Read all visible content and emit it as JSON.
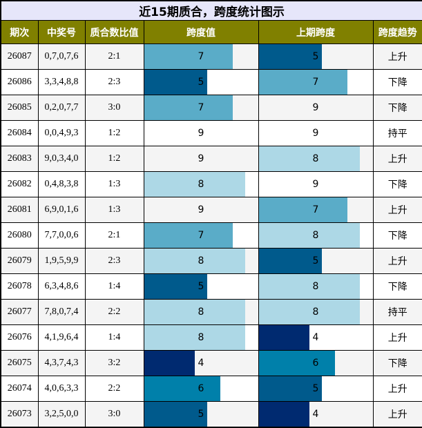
{
  "title": "近15期质合，跨度统计图示",
  "headers": [
    "期次",
    "中奖号",
    "质合数比值",
    "跨度值",
    "上期跨度",
    "跨度趋势"
  ],
  "span_max": 9,
  "span_colors": {
    "4": "#002a70",
    "5": "#005a8c",
    "6": "#0080aa",
    "7": "#5aacc8",
    "8": "#add8e6",
    "9": "transparent"
  },
  "header_color": "#808000",
  "title_bg": "#e6e6fa",
  "rows": [
    {
      "issue": "26087",
      "numbers": "0,7,0,7,6",
      "ratio": "2:1",
      "span": 7,
      "prev_span": 5,
      "trend": "上升"
    },
    {
      "issue": "26086",
      "numbers": "3,3,4,8,8",
      "ratio": "2:3",
      "span": 5,
      "prev_span": 7,
      "trend": "下降"
    },
    {
      "issue": "26085",
      "numbers": "0,2,0,7,7",
      "ratio": "3:0",
      "span": 7,
      "prev_span": 9,
      "trend": "下降"
    },
    {
      "issue": "26084",
      "numbers": "0,0,4,9,3",
      "ratio": "1:2",
      "span": 9,
      "prev_span": 9,
      "trend": "持平"
    },
    {
      "issue": "26083",
      "numbers": "9,0,3,4,0",
      "ratio": "1:2",
      "span": 9,
      "prev_span": 8,
      "trend": "上升"
    },
    {
      "issue": "26082",
      "numbers": "0,4,8,3,8",
      "ratio": "1:3",
      "span": 8,
      "prev_span": 9,
      "trend": "下降"
    },
    {
      "issue": "26081",
      "numbers": "6,9,0,1,6",
      "ratio": "1:3",
      "span": 9,
      "prev_span": 7,
      "trend": "上升"
    },
    {
      "issue": "26080",
      "numbers": "7,7,0,0,6",
      "ratio": "2:1",
      "span": 7,
      "prev_span": 8,
      "trend": "下降"
    },
    {
      "issue": "26079",
      "numbers": "1,9,5,9,9",
      "ratio": "2:3",
      "span": 8,
      "prev_span": 5,
      "trend": "上升"
    },
    {
      "issue": "26078",
      "numbers": "6,3,4,8,6",
      "ratio": "1:4",
      "span": 5,
      "prev_span": 8,
      "trend": "下降"
    },
    {
      "issue": "26077",
      "numbers": "7,8,0,7,4",
      "ratio": "2:2",
      "span": 8,
      "prev_span": 8,
      "trend": "持平"
    },
    {
      "issue": "26076",
      "numbers": "4,1,9,6,4",
      "ratio": "1:4",
      "span": 8,
      "prev_span": 4,
      "trend": "上升"
    },
    {
      "issue": "26075",
      "numbers": "4,3,7,4,3",
      "ratio": "3:2",
      "span": 4,
      "prev_span": 6,
      "trend": "下降"
    },
    {
      "issue": "26074",
      "numbers": "4,0,6,3,3",
      "ratio": "2:2",
      "span": 6,
      "prev_span": 5,
      "trend": "上升"
    },
    {
      "issue": "26073",
      "numbers": "3,2,5,0,0",
      "ratio": "3:0",
      "span": 5,
      "prev_span": 4,
      "trend": "上升"
    }
  ]
}
